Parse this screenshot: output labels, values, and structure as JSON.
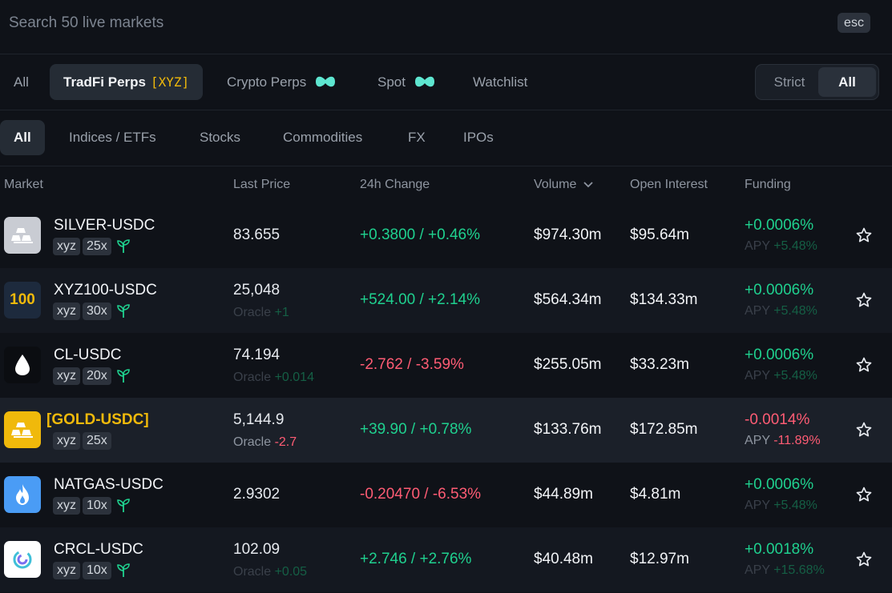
{
  "search": {
    "placeholder": "Search 50 live markets",
    "esc_label": "esc"
  },
  "tabs": {
    "all": "All",
    "tradfi": "TradFi Perps",
    "tradfi_tag": "[XYZ]",
    "crypto": "Crypto Perps",
    "spot": "Spot",
    "watchlist": "Watchlist"
  },
  "mode_toggle": {
    "strict": "Strict",
    "all": "All"
  },
  "categories": [
    "All",
    "Indices / ETFs",
    "Stocks",
    "Commodities",
    "FX",
    "IPOs"
  ],
  "columns": {
    "market": "Market",
    "last_price": "Last Price",
    "change": "24h Change",
    "volume": "Volume",
    "open_interest": "Open Interest",
    "funding": "Funding"
  },
  "rows": [
    {
      "name": "SILVER-USDC",
      "dex": "xyz",
      "leverage": "25x",
      "icon": "silver-bars-icon",
      "price": "83.655",
      "oracle_label": "",
      "oracle_value": "",
      "change": "+0.3800 / +0.46%",
      "volume": "$974.30m",
      "open_interest": "$95.64m",
      "funding": "+0.0006%",
      "apy_label": "APY",
      "apy_value": "+5.48%"
    },
    {
      "name": "XYZ100-USDC",
      "dex": "xyz",
      "leverage": "30x",
      "icon": "xyz100-icon",
      "icon_text": "100",
      "price": "25,048",
      "oracle_label": "Oracle",
      "oracle_value": "+1",
      "change": "+524.00 / +2.14%",
      "volume": "$564.34m",
      "open_interest": "$134.33m",
      "funding": "+0.0006%",
      "apy_label": "APY",
      "apy_value": "+5.48%"
    },
    {
      "name": "CL-USDC",
      "dex": "xyz",
      "leverage": "20x",
      "icon": "oil-drop-icon",
      "price": "74.194",
      "oracle_label": "Oracle",
      "oracle_value": "+0.014",
      "change": "-2.762 / -3.59%",
      "volume": "$255.05m",
      "open_interest": "$33.23m",
      "funding": "+0.0006%",
      "apy_label": "APY",
      "apy_value": "+5.48%"
    },
    {
      "name": "[GOLD-USDC]",
      "dex": "xyz",
      "leverage": "25x",
      "icon": "gold-bars-icon",
      "price": "5,144.9",
      "oracle_label": "Oracle",
      "oracle_value": "-2.7",
      "change": "+39.90 / +0.78%",
      "volume": "$133.76m",
      "open_interest": "$172.85m",
      "funding": "-0.0014%",
      "apy_label": "APY",
      "apy_value": "-11.89%"
    },
    {
      "name": "NATGAS-USDC",
      "dex": "xyz",
      "leverage": "10x",
      "icon": "flame-icon",
      "price": "2.9302",
      "oracle_label": "",
      "oracle_value": "",
      "change": "-0.20470 / -6.53%",
      "volume": "$44.89m",
      "open_interest": "$4.81m",
      "funding": "+0.0006%",
      "apy_label": "APY",
      "apy_value": "+5.48%"
    },
    {
      "name": "CRCL-USDC",
      "dex": "xyz",
      "leverage": "10x",
      "icon": "circle-logo-icon",
      "price": "102.09",
      "oracle_label": "Oracle",
      "oracle_value": "+0.05",
      "change": "+2.746 / +2.76%",
      "volume": "$40.48m",
      "open_interest": "$12.97m",
      "funding": "+0.0018%",
      "apy_label": "APY",
      "apy_value": "+15.68%"
    }
  ],
  "colors": {
    "positive": "#1fd18f",
    "negative": "#ff5c74",
    "accent_gold": "#f0b90b",
    "teal": "#5ee6d0"
  }
}
